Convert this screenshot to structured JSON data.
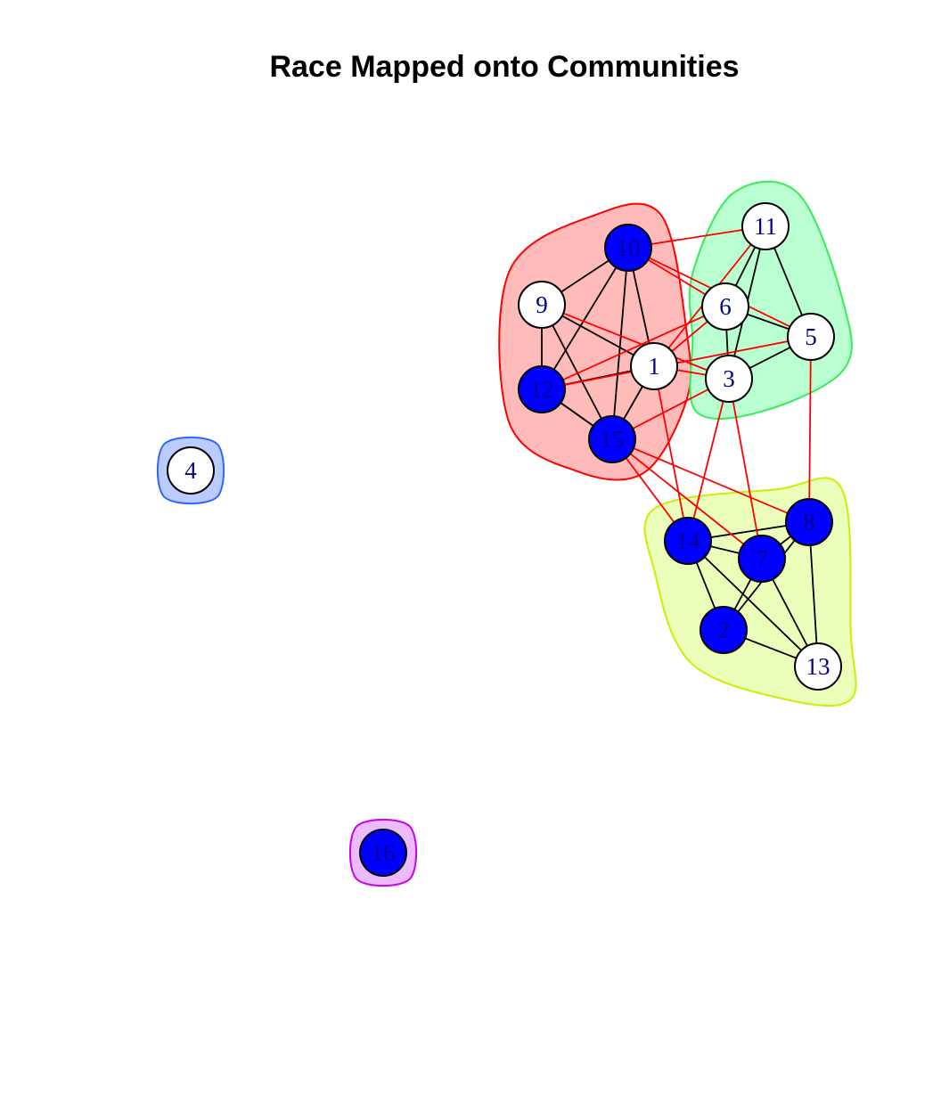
{
  "title": "Race Mapped onto Communities",
  "colors": {
    "filled_node": "#0000ff",
    "open_node": "#ffffff",
    "node_stroke": "#000000",
    "label": "#00008b",
    "within_edge": "#000000",
    "between_edge": "#ff0000"
  },
  "nodes": [
    {
      "id": "1",
      "label": "1",
      "fill": "white"
    },
    {
      "id": "2",
      "label": "2",
      "fill": "blue"
    },
    {
      "id": "3",
      "label": "3",
      "fill": "white"
    },
    {
      "id": "4",
      "label": "4",
      "fill": "white"
    },
    {
      "id": "5",
      "label": "5",
      "fill": "white"
    },
    {
      "id": "6",
      "label": "6",
      "fill": "white"
    },
    {
      "id": "7",
      "label": "7",
      "fill": "blue"
    },
    {
      "id": "8",
      "label": "8",
      "fill": "blue"
    },
    {
      "id": "9",
      "label": "9",
      "fill": "white"
    },
    {
      "id": "10",
      "label": "10",
      "fill": "blue"
    },
    {
      "id": "11",
      "label": "11",
      "fill": "white"
    },
    {
      "id": "12",
      "label": "12",
      "fill": "blue"
    },
    {
      "id": "13",
      "label": "13",
      "fill": "white"
    },
    {
      "id": "14",
      "label": "14",
      "fill": "blue"
    },
    {
      "id": "15",
      "label": "15",
      "fill": "blue"
    },
    {
      "id": "16",
      "label": "16",
      "fill": "blue"
    }
  ],
  "communities": [
    {
      "name": "red",
      "members": [
        "1",
        "9",
        "10",
        "12",
        "15"
      ],
      "fill": "#ffb3b3",
      "stroke": "#ff0000"
    },
    {
      "name": "green",
      "members": [
        "3",
        "5",
        "6",
        "11"
      ],
      "fill": "#b3ffcc",
      "stroke": "#33ee55"
    },
    {
      "name": "yellow",
      "members": [
        "2",
        "7",
        "8",
        "13",
        "14"
      ],
      "fill": "#eaffb3",
      "stroke": "#c8f000"
    },
    {
      "name": "blue",
      "members": [
        "4"
      ],
      "fill": "#b3c6ff",
      "stroke": "#3366ff"
    },
    {
      "name": "purple",
      "members": [
        "16"
      ],
      "fill": "#eab3ff",
      "stroke": "#cc00ee"
    }
  ],
  "edges": [
    [
      "9",
      "10"
    ],
    [
      "9",
      "12"
    ],
    [
      "9",
      "15"
    ],
    [
      "10",
      "12"
    ],
    [
      "10",
      "15"
    ],
    [
      "10",
      "1"
    ],
    [
      "12",
      "15"
    ],
    [
      "12",
      "1"
    ],
    [
      "1",
      "15"
    ],
    [
      "11",
      "6"
    ],
    [
      "11",
      "3"
    ],
    [
      "11",
      "5"
    ],
    [
      "6",
      "3"
    ],
    [
      "6",
      "5"
    ],
    [
      "3",
      "5"
    ],
    [
      "14",
      "8"
    ],
    [
      "14",
      "7"
    ],
    [
      "14",
      "2"
    ],
    [
      "14",
      "13"
    ],
    [
      "7",
      "8"
    ],
    [
      "7",
      "2"
    ],
    [
      "7",
      "13"
    ],
    [
      "8",
      "2"
    ],
    [
      "8",
      "13"
    ],
    [
      "2",
      "13"
    ],
    [
      "10",
      "11"
    ],
    [
      "10",
      "6"
    ],
    [
      "10",
      "5"
    ],
    [
      "9",
      "1"
    ],
    [
      "9",
      "3"
    ],
    [
      "12",
      "6"
    ],
    [
      "12",
      "5"
    ],
    [
      "1",
      "11"
    ],
    [
      "1",
      "6"
    ],
    [
      "1",
      "3"
    ],
    [
      "1",
      "14"
    ],
    [
      "15",
      "3"
    ],
    [
      "15",
      "8"
    ],
    [
      "15",
      "7"
    ],
    [
      "15",
      "14"
    ],
    [
      "3",
      "14"
    ],
    [
      "3",
      "7"
    ],
    [
      "5",
      "8"
    ],
    [
      "12",
      "15"
    ]
  ]
}
